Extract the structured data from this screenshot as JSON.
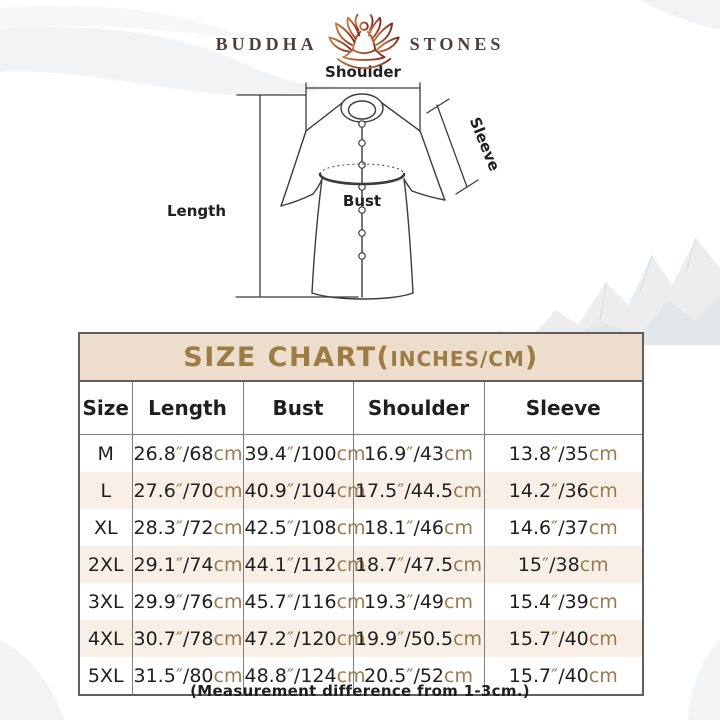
{
  "brand": {
    "name_left": "BUDDHA",
    "name_right": "STONES",
    "logo_icon": "lotus-meditation"
  },
  "diagram": {
    "shoulder_label": "Shoulder",
    "sleeve_label": "Sleeve",
    "length_label": "Length",
    "bust_label": "Bust"
  },
  "size_chart": {
    "title_prefix": "SIZE CHART(",
    "title_unit": "INCHES/CM",
    "title_suffix": ")",
    "columns": [
      "Size",
      "Length",
      "Bust",
      "Shoulder",
      "Sleeve"
    ],
    "units": {
      "inch_mark": "″",
      "cm_suffix": "cm"
    },
    "rows": [
      {
        "size": "M",
        "values": [
          [
            "26.8",
            "68"
          ],
          [
            "39.4",
            "100"
          ],
          [
            "16.9",
            "43"
          ],
          [
            "13.8",
            "35"
          ]
        ]
      },
      {
        "size": "L",
        "values": [
          [
            "27.6",
            "70"
          ],
          [
            "40.9",
            "104"
          ],
          [
            "17.5",
            "44.5"
          ],
          [
            "14.2",
            "36"
          ]
        ]
      },
      {
        "size": "XL",
        "values": [
          [
            "28.3",
            "72"
          ],
          [
            "42.5",
            "108"
          ],
          [
            "18.1",
            "46"
          ],
          [
            "14.6",
            "37"
          ]
        ]
      },
      {
        "size": "2XL",
        "values": [
          [
            "29.1",
            "74"
          ],
          [
            "44.1",
            "112"
          ],
          [
            "18.7",
            "47.5"
          ],
          [
            "15",
            "38"
          ]
        ]
      },
      {
        "size": "3XL",
        "values": [
          [
            "29.9",
            "76"
          ],
          [
            "45.7",
            "116"
          ],
          [
            "19.3",
            "49"
          ],
          [
            "15.4",
            "39"
          ]
        ]
      },
      {
        "size": "4XL",
        "values": [
          [
            "30.7",
            "78"
          ],
          [
            "47.2",
            "120"
          ],
          [
            "19.9",
            "50.5"
          ],
          [
            "15.7",
            "40"
          ]
        ]
      },
      {
        "size": "5XL",
        "values": [
          [
            "31.5",
            "80"
          ],
          [
            "48.8",
            "124"
          ],
          [
            "20.5",
            "52"
          ],
          [
            "15.7",
            "40"
          ]
        ]
      }
    ]
  },
  "footer_note": "(Measurement difference from 1-3cm.)",
  "colors": {
    "title-gold": "#9c7b45",
    "unit-brown": "#9a7a4e",
    "band-beige": "#ecddcd",
    "row-cream": "#f8f0e7",
    "table-border": "#5f5f5f",
    "table-divider": "#7f7f7f",
    "text-dark": "#1f1f1f",
    "brand-brown": "#4e3f3a",
    "logo-orange": "#c87a44",
    "logo-red": "#7e2b1d",
    "sketch-line": "#3c3c3c"
  }
}
